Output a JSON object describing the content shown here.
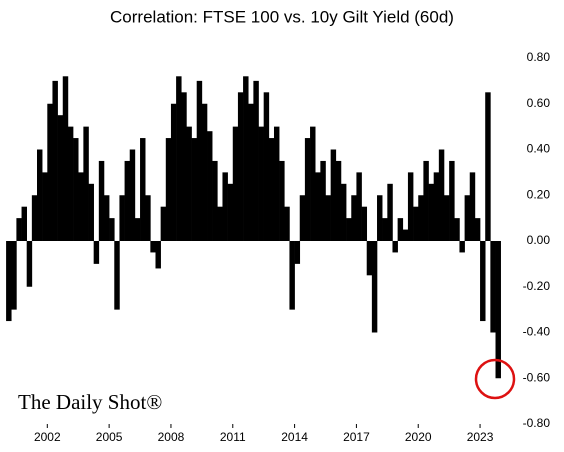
{
  "chart_data": {
    "type": "bar",
    "title": "Correlation: FTSE 100 vs. 10y Gilt Yield (60d)",
    "watermark": "The Daily Shot®",
    "x": [
      2000.0,
      2000.25,
      2000.5,
      2000.75,
      2001.0,
      2001.25,
      2001.5,
      2001.75,
      2002.0,
      2002.25,
      2002.5,
      2002.75,
      2003.0,
      2003.25,
      2003.5,
      2003.75,
      2004.0,
      2004.25,
      2004.5,
      2004.75,
      2005.0,
      2005.25,
      2005.5,
      2005.75,
      2006.0,
      2006.25,
      2006.5,
      2006.75,
      2007.0,
      2007.25,
      2007.5,
      2007.75,
      2008.0,
      2008.25,
      2008.5,
      2008.75,
      2009.0,
      2009.25,
      2009.5,
      2009.75,
      2010.0,
      2010.25,
      2010.5,
      2010.75,
      2011.0,
      2011.25,
      2011.5,
      2011.75,
      2012.0,
      2012.25,
      2012.5,
      2012.75,
      2013.0,
      2013.25,
      2013.5,
      2013.75,
      2014.0,
      2014.25,
      2014.5,
      2014.75,
      2015.0,
      2015.25,
      2015.5,
      2015.75,
      2016.0,
      2016.25,
      2016.5,
      2016.75,
      2017.0,
      2017.25,
      2017.5,
      2017.75,
      2018.0,
      2018.25,
      2018.5,
      2018.75,
      2019.0,
      2019.25,
      2019.5,
      2019.75,
      2020.0,
      2020.25,
      2020.5,
      2020.75,
      2021.0,
      2021.25,
      2021.5,
      2021.75,
      2022.0,
      2022.25,
      2022.5,
      2022.75,
      2023.0,
      2023.25,
      2023.5,
      2023.75
    ],
    "values": [
      -0.35,
      -0.3,
      0.1,
      0.15,
      -0.2,
      0.2,
      0.4,
      0.3,
      0.6,
      0.7,
      0.55,
      0.72,
      0.5,
      0.45,
      0.3,
      0.5,
      0.25,
      -0.1,
      0.35,
      0.2,
      0.1,
      -0.3,
      0.2,
      0.35,
      0.4,
      0.1,
      0.45,
      0.2,
      -0.05,
      -0.12,
      0.15,
      0.45,
      0.6,
      0.72,
      0.65,
      0.5,
      0.45,
      0.7,
      0.6,
      0.48,
      0.35,
      0.15,
      0.3,
      0.25,
      0.5,
      0.65,
      0.72,
      0.6,
      0.7,
      0.5,
      0.65,
      0.45,
      0.5,
      0.35,
      0.15,
      -0.3,
      -0.1,
      0.2,
      0.45,
      0.5,
      0.3,
      0.35,
      0.2,
      0.4,
      0.35,
      0.25,
      0.1,
      0.2,
      0.3,
      0.15,
      -0.15,
      -0.4,
      0.2,
      0.1,
      0.25,
      -0.05,
      0.1,
      0.05,
      0.3,
      0.15,
      0.2,
      0.35,
      0.25,
      0.3,
      0.4,
      0.2,
      0.35,
      0.1,
      -0.05,
      0.2,
      0.3,
      0.1,
      -0.35,
      0.65,
      -0.4,
      -0.6
    ],
    "color": "#000000",
    "xlim": [
      1999.85,
      2024.55
    ],
    "xticks": [
      2002,
      2005,
      2008,
      2011,
      2014,
      2017,
      2020,
      2023
    ],
    "ylim": [
      -0.8,
      0.8
    ],
    "yticks": [
      {
        "value": 0.8,
        "label": "0.80"
      },
      {
        "value": 0.6,
        "label": "0.60"
      },
      {
        "value": 0.4,
        "label": "0.40"
      },
      {
        "value": 0.2,
        "label": "0.20"
      },
      {
        "value": 0,
        "label": "0.00"
      },
      {
        "value": -0.2,
        "label": "-0.20"
      },
      {
        "value": -0.4,
        "label": "-0.40"
      },
      {
        "value": -0.6,
        "label": "-0.60"
      },
      {
        "value": -0.8,
        "label": "-0.80"
      }
    ]
  }
}
